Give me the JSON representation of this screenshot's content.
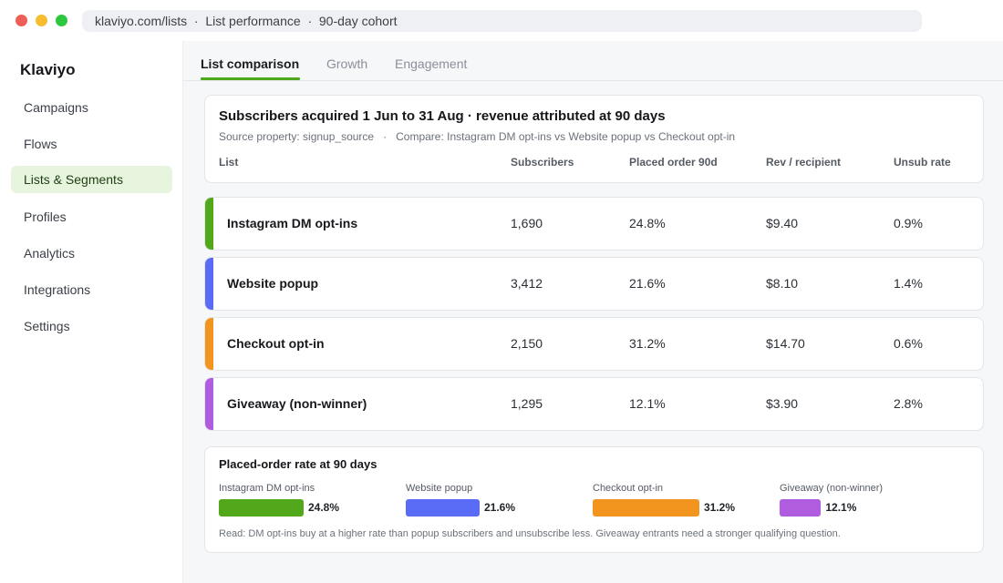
{
  "browser": {
    "url_parts": [
      "klaviyo.com/lists",
      "List performance",
      "90-day cohort"
    ],
    "separator": "·"
  },
  "sidebar": {
    "brand": "Klaviyo",
    "items": [
      {
        "label": "Campaigns",
        "active": false
      },
      {
        "label": "Flows",
        "active": false
      },
      {
        "label": "Lists & Segments",
        "active": true
      },
      {
        "label": "Profiles",
        "active": false
      },
      {
        "label": "Analytics",
        "active": false
      },
      {
        "label": "Integrations",
        "active": false
      },
      {
        "label": "Settings",
        "active": false
      }
    ]
  },
  "tabs": [
    {
      "label": "List comparison",
      "active": true
    },
    {
      "label": "Growth",
      "active": false
    },
    {
      "label": "Engagement",
      "active": false
    }
  ],
  "summary": {
    "title": "Subscribers acquired 1 Jun to 31 Aug · revenue attributed at 90 days",
    "source": "Source property: signup_source",
    "compare": "Compare: Instagram DM opt-ins vs Website popup vs Checkout opt-in",
    "columns": [
      "List",
      "Subscribers",
      "Placed order 90d",
      "Rev / recipient",
      "Unsub rate"
    ]
  },
  "lists": [
    {
      "name": "Instagram DM opt-ins",
      "subscribers": "1,690",
      "placed_order": "24.8%",
      "rev_per_recipient": "$9.40",
      "unsub_rate": "0.9%",
      "color": "#52a81b"
    },
    {
      "name": "Website popup",
      "subscribers": "3,412",
      "placed_order": "21.6%",
      "rev_per_recipient": "$8.10",
      "unsub_rate": "1.4%",
      "color": "#5a6cf5"
    },
    {
      "name": "Checkout opt-in",
      "subscribers": "2,150",
      "placed_order": "31.2%",
      "rev_per_recipient": "$14.70",
      "unsub_rate": "0.6%",
      "color": "#f2951f"
    },
    {
      "name": "Giveaway (non-winner)",
      "subscribers": "1,295",
      "placed_order": "12.1%",
      "rev_per_recipient": "$3.90",
      "unsub_rate": "2.8%",
      "color": "#b05cdf"
    }
  ],
  "chart_data": {
    "type": "bar",
    "title": "Placed-order rate at 90 days",
    "categories": [
      "Instagram DM opt-ins",
      "Website popup",
      "Checkout opt-in",
      "Giveaway (non-winner)"
    ],
    "values": [
      24.8,
      21.6,
      31.2,
      12.1
    ],
    "value_labels": [
      "24.8%",
      "21.6%",
      "31.2%",
      "12.1%"
    ],
    "colors": [
      "#52a81b",
      "#5a6cf5",
      "#f2951f",
      "#b05cdf"
    ],
    "note": "Read: DM opt-ins buy at a higher rate than popup subscribers and unsubscribe less. Giveaway entrants need a stronger qualifying question."
  }
}
